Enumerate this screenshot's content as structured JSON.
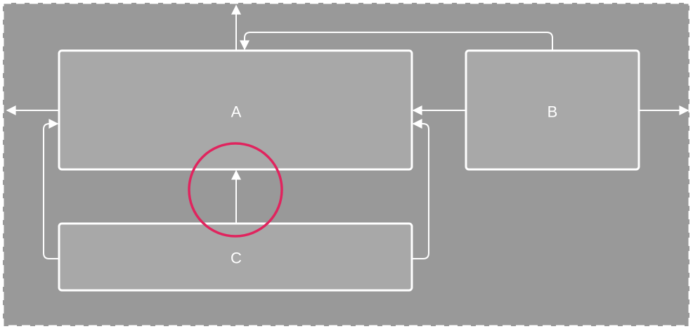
{
  "colors": {
    "canvas_background": "#999999",
    "node_fill": "#a8a8a8",
    "stroke": "#ffffff",
    "highlight": "#e0245e"
  },
  "nodes": {
    "a": {
      "label": "A"
    },
    "b": {
      "label": "B"
    },
    "c": {
      "label": "C"
    }
  },
  "edges": [
    {
      "from": "a",
      "to": "parent-top"
    },
    {
      "from": "b",
      "to": "a-top"
    },
    {
      "from": "a",
      "to": "parent-left"
    },
    {
      "from": "c",
      "to": "a-left"
    },
    {
      "from": "b",
      "to": "a-right"
    },
    {
      "from": "c",
      "to": "a-right"
    },
    {
      "from": "b",
      "to": "parent-right"
    },
    {
      "from": "c",
      "to": "a-bottom",
      "highlighted": true
    }
  ]
}
